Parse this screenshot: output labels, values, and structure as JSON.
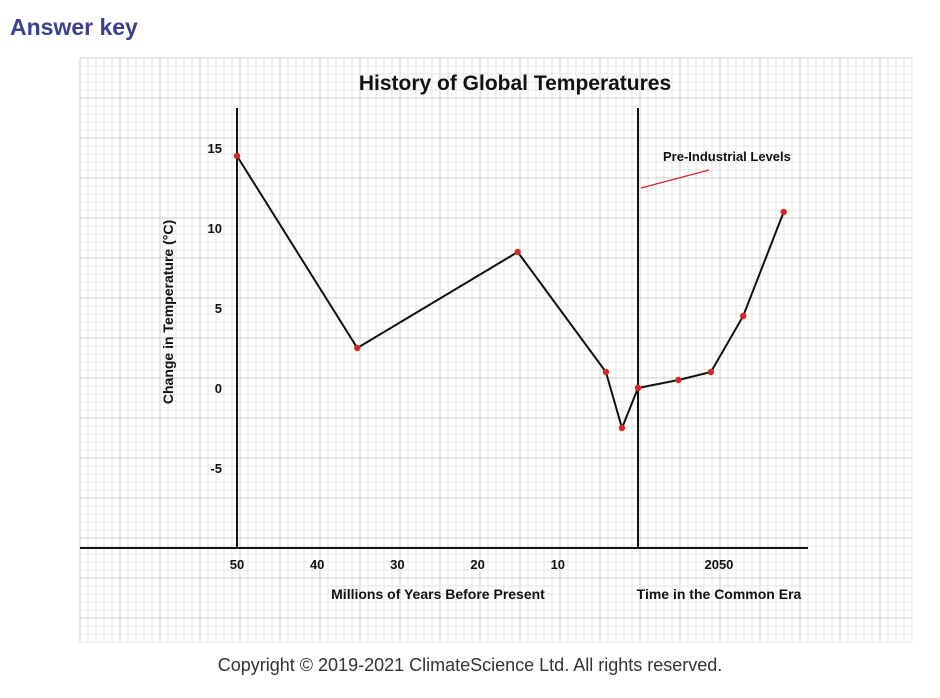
{
  "header": {
    "title": "Answer key"
  },
  "footer": {
    "copyright": "Copyright © 2019-2021 ClimateScience Ltd. All rights reserved."
  },
  "chart_data": {
    "type": "line",
    "title": "History of Global Temperatures",
    "ylabel": "Change in Temperature (°C)",
    "ylim": [
      -10,
      17.5
    ],
    "yticks": [
      15,
      10,
      5,
      0,
      -5
    ],
    "grid": true,
    "panels": [
      {
        "xlabel": "Millions of Years Before Present",
        "xticks": [
          "50",
          "40",
          "30",
          "20",
          "10"
        ],
        "x_tick_values": [
          50,
          40,
          30,
          20,
          10
        ],
        "x_domain": [
          50,
          0
        ],
        "points": [
          {
            "x": 50,
            "y": 14.5
          },
          {
            "x": 35,
            "y": 2.5
          },
          {
            "x": 15,
            "y": 8.5
          },
          {
            "x": 4,
            "y": 1
          },
          {
            "x": 2,
            "y": -2.5
          },
          {
            "x": 0,
            "y": 0
          }
        ]
      },
      {
        "xlabel": "Time in the Common Era",
        "xticks": [
          "2050"
        ],
        "x_tick_values": [
          2050
        ],
        "x_domain": [
          1850,
          2270
        ],
        "points": [
          {
            "x": 1850,
            "y": 0
          },
          {
            "x": 1950,
            "y": 0.5
          },
          {
            "x": 2030,
            "y": 1
          },
          {
            "x": 2110,
            "y": 4.5
          },
          {
            "x": 2210,
            "y": 11
          }
        ]
      }
    ],
    "annotations": [
      {
        "text": "Pre-Industrial Levels",
        "points_to": {
          "panel": 1,
          "x": 1850,
          "y": 12.5
        }
      }
    ],
    "colors": {
      "line": "#111111",
      "marker": "#d62728",
      "annotation_line": "#d62728",
      "grid_minor": "#e6e6e6",
      "grid_major": "#cfcfcf"
    }
  }
}
